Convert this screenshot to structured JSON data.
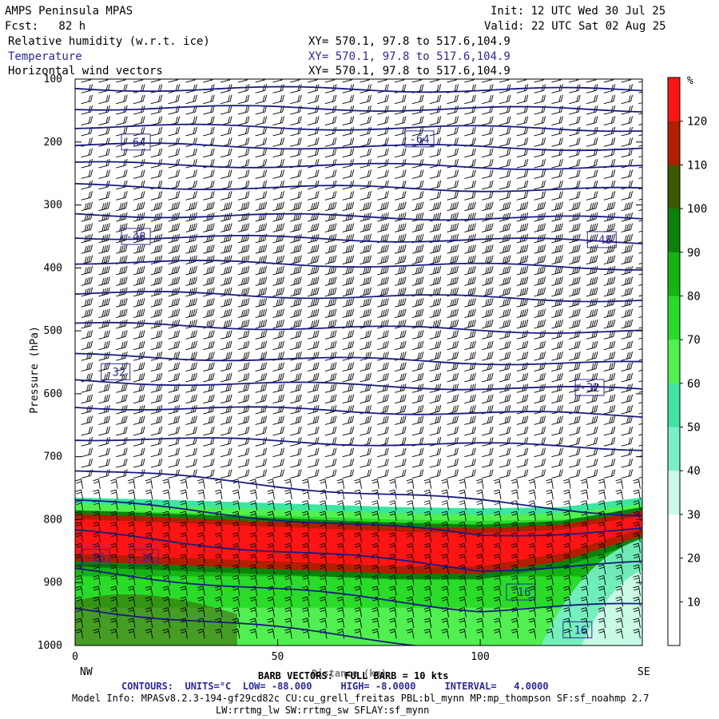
{
  "header": {
    "model": "AMPS Peninsula MPAS",
    "fcst": "Fcst:   82 h",
    "init": "Init: 12 UTC Wed 30 Jul 25",
    "valid": "Valid: 22 UTC Sat 02 Aug 25",
    "fields": [
      {
        "name": "Relative humidity (w.r.t. ice)",
        "xy": "XY= 570.1, 97.8 to 517.6,104.9"
      },
      {
        "name": "Temperature",
        "xy": "XY= 570.1, 97.8 to 517.6,104.9"
      },
      {
        "name": "Horizontal wind vectors",
        "xy": "XY= 570.1, 97.8 to 517.6,104.9"
      }
    ]
  },
  "footer": {
    "barb": "BARB VECTORS:  FULL BARB = 10 kts",
    "xlabel": "Distance (km)",
    "contours": "CONTOURS:  UNITS=°C  LOW= -88.000     HIGH= -8.0000     INTERVAL=   4.0000",
    "model_info": "Model Info: MPASv8.2.3-194-gf29cd82c CU:cu_grell_freitas PBL:bl_mynn MP:mp_thompson SF:sf_noahmp 2.7",
    "model_info2": "LW:rrtmg_lw SW:rrtmg_sw SFLAY:sf_mynn"
  },
  "chart_data": {
    "type": "heatmap",
    "title": "Relative humidity (w.r.t. ice), Temperature, Horizontal wind vectors",
    "xlabel": "Distance (km)",
    "ylabel": "Pressure (hPa)",
    "xlim": [
      0,
      140
    ],
    "ylim": [
      1000,
      100
    ],
    "x_ticks": [
      0,
      50,
      100
    ],
    "y_ticks": [
      100,
      200,
      300,
      400,
      500,
      600,
      700,
      800,
      900,
      1000
    ],
    "x_end_labels": {
      "left": "NW",
      "right": "SE"
    },
    "colorbar": {
      "unit": "%",
      "levels": [
        10,
        20,
        30,
        40,
        50,
        60,
        70,
        80,
        90,
        100,
        110,
        120
      ],
      "colors": [
        "#ffffff",
        "#ffffff",
        "#ffffff",
        "#c8fae6",
        "#78f0c8",
        "#3ce6a0",
        "#50f050",
        "#28dc28",
        "#14b414",
        "#0a820a",
        "#3c5a00",
        "#b41e00",
        "#ff1414"
      ]
    },
    "temperature_contours": {
      "units": "°C",
      "low": -88.0,
      "high": -8.0,
      "interval": 4.0,
      "labels": [
        {
          "value": "-64",
          "x": 15,
          "p": 200
        },
        {
          "value": "-64",
          "x": 85,
          "p": 195
        },
        {
          "value": "-48",
          "x": 15,
          "p": 350
        },
        {
          "value": "-48",
          "x": 130,
          "p": 355
        },
        {
          "value": "-32",
          "x": 10,
          "p": 565
        },
        {
          "value": "-32",
          "x": 127,
          "p": 590
        },
        {
          "value": "-16",
          "x": 5,
          "p": 860
        },
        {
          "value": "-16",
          "x": 17,
          "p": 860
        },
        {
          "value": "-16",
          "x": 110,
          "p": 915
        },
        {
          "value": "-16",
          "x": 124,
          "p": 975
        }
      ],
      "lines_p": [
        115,
        145,
        175,
        205,
        235,
        270,
        315,
        350,
        390,
        440,
        490,
        540,
        580,
        620,
        670,
        720,
        770,
        820,
        880,
        940
      ]
    },
    "rh_layers": [
      {
        "x": [
          0,
          20,
          40,
          60,
          80,
          100,
          120,
          140
        ],
        "p_top": [
          795,
          800,
          805,
          810,
          815,
          818,
          812,
          790
        ],
        "p_bot": [
          860,
          865,
          870,
          875,
          880,
          880,
          860,
          820
        ],
        "rh": 120
      },
      {
        "x": [
          0,
          20,
          40,
          60,
          80,
          100,
          120,
          140
        ],
        "p_top": [
          775,
          778,
          782,
          786,
          790,
          792,
          790,
          775
        ],
        "p_bot": [
          1000,
          1000,
          1000,
          1000,
          1000,
          1000,
          1000,
          1000
        ],
        "rh": 90
      }
    ],
    "wind_barbs": "upper levels westerly 25-60 kts; low levels northerly ~10-20 kts",
    "grid": false,
    "legend": "right colorbar"
  }
}
